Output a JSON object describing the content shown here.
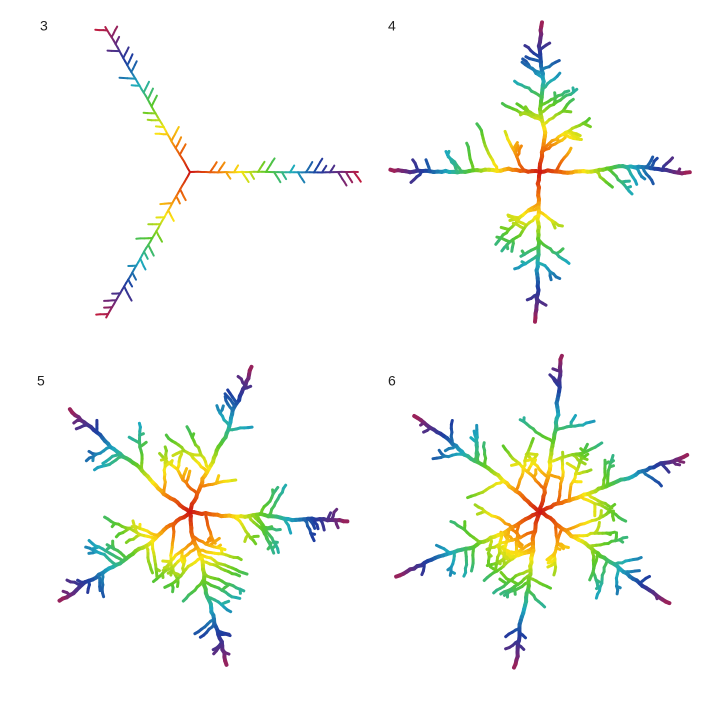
{
  "panels": [
    {
      "label": "3"
    },
    {
      "label": "4"
    },
    {
      "label": "5"
    },
    {
      "label": "6"
    }
  ]
}
